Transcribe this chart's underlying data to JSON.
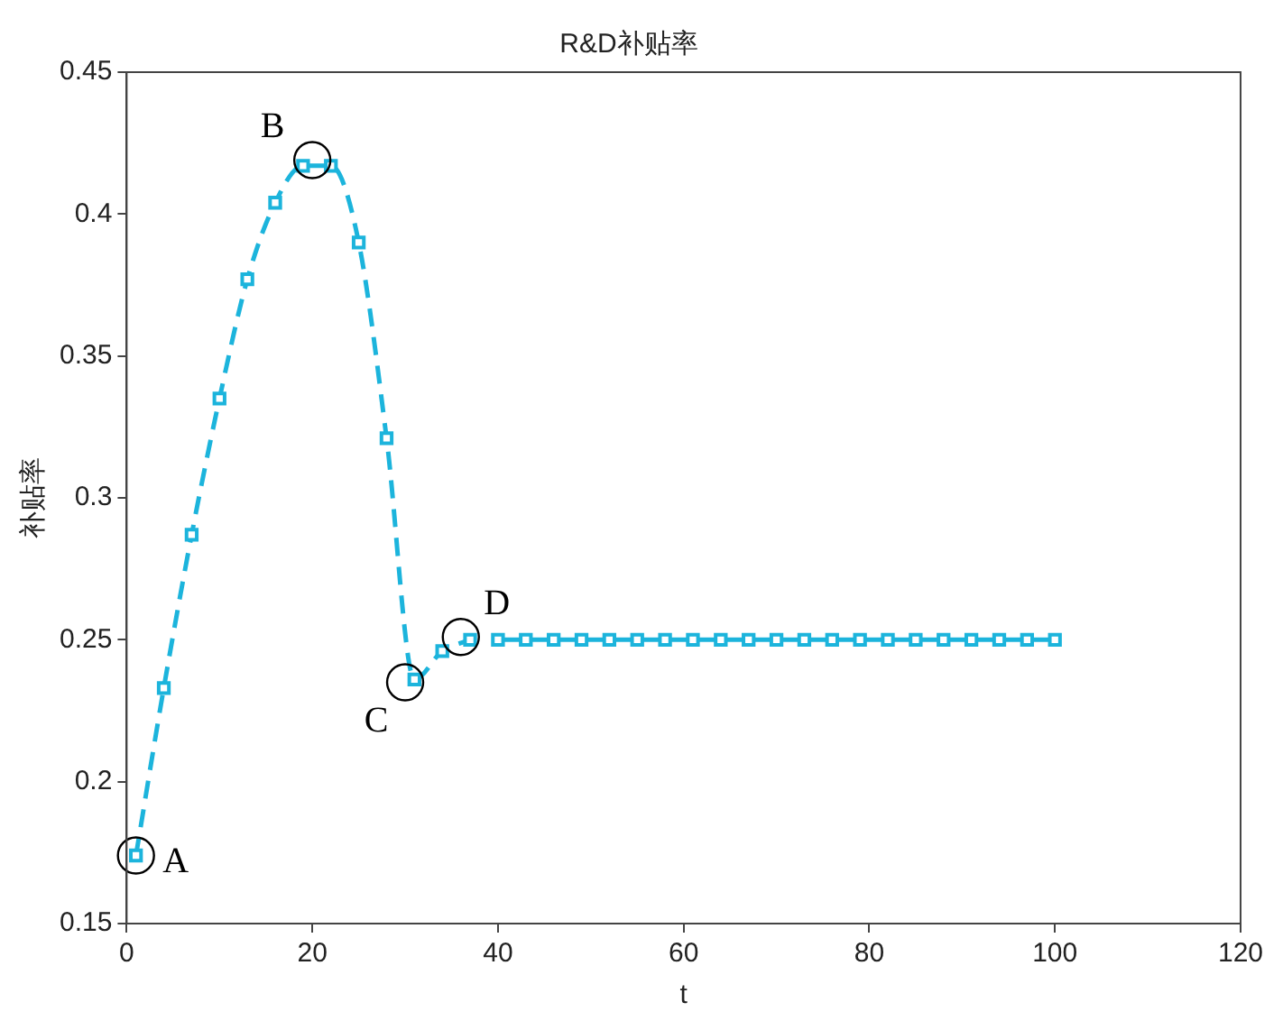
{
  "chart_data": {
    "type": "line",
    "title": "R&D补贴率",
    "xlabel": "t",
    "ylabel": "补贴率",
    "series": [
      {
        "color": "#1cb4dc",
        "line_style": "dashed",
        "x": [
          1,
          4,
          7,
          10,
          13,
          16,
          19,
          22,
          25,
          28,
          31,
          34,
          37
        ],
        "values": [
          0.174,
          0.233,
          0.287,
          0.335,
          0.377,
          0.404,
          0.417,
          0.417,
          0.39,
          0.321,
          0.236,
          0.246,
          0.25
        ]
      },
      {
        "color": "#1cb4dc",
        "line_style": "solid",
        "x": [
          40,
          43,
          46,
          49,
          52,
          55,
          58,
          61,
          64,
          67,
          70,
          73,
          76,
          79,
          82,
          85,
          88,
          91,
          94,
          97,
          100
        ],
        "values": [
          0.25,
          0.25,
          0.25,
          0.25,
          0.25,
          0.25,
          0.25,
          0.25,
          0.25,
          0.25,
          0.25,
          0.25,
          0.25,
          0.25,
          0.25,
          0.25,
          0.25,
          0.25,
          0.25,
          0.25,
          0.25
        ]
      }
    ],
    "marker": "square",
    "xlim": [
      0,
      120
    ],
    "xticks": [
      0,
      20,
      40,
      60,
      80,
      100,
      120
    ],
    "ylim": [
      0.15,
      0.45
    ],
    "yticks": [
      0.15,
      0.2,
      0.25,
      0.3,
      0.35,
      0.4,
      0.45
    ],
    "grid": false,
    "legend": false,
    "annotations": [
      {
        "text": "A",
        "x": 1,
        "y": 0.174
      },
      {
        "text": "B",
        "x": 20,
        "y": 0.419
      },
      {
        "text": "C",
        "x": 30,
        "y": 0.235
      },
      {
        "text": "D",
        "x": 36,
        "y": 0.251
      }
    ]
  }
}
